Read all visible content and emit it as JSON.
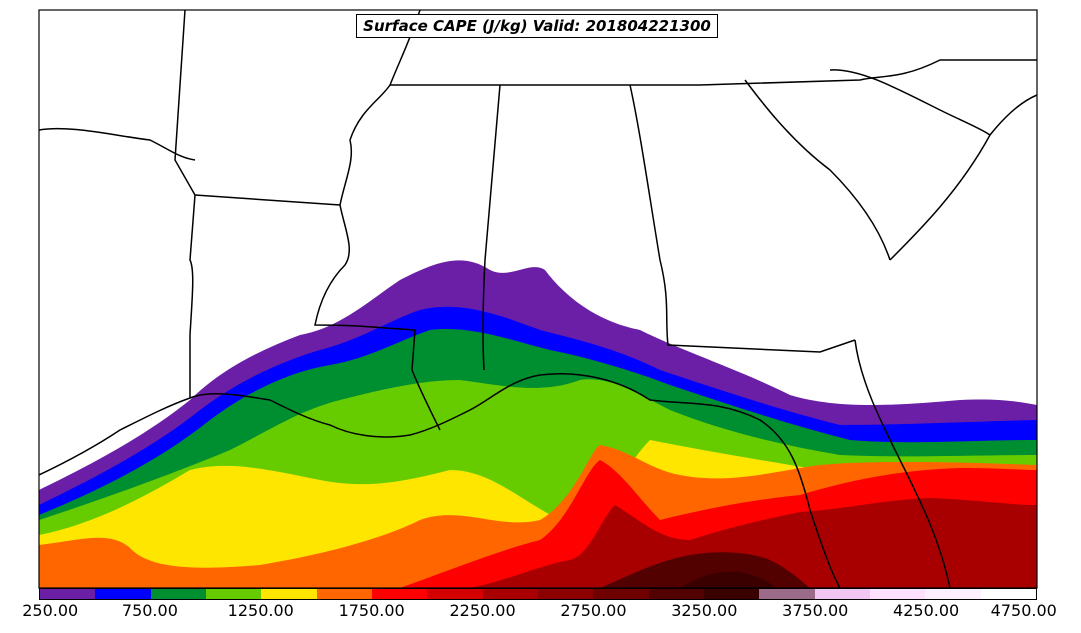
{
  "title": "Surface CAPE (J/kg) Valid: 201804221300",
  "colorbar": {
    "ticks": [
      "250.00",
      "750.00",
      "1250.00",
      "1750.00",
      "2250.00",
      "2750.00",
      "3250.00",
      "3750.00",
      "4250.00",
      "4750.00"
    ],
    "colors": [
      "#6a1fa6",
      "#0000ff",
      "#008f30",
      "#66cc00",
      "#ffe600",
      "#ff6600",
      "#ff0000",
      "#d40000",
      "#a80000",
      "#8c0000",
      "#6e0000",
      "#520000",
      "#3a0000",
      "#9c6b8a",
      "#f2c6f2",
      "#ffe0ff",
      "#fff0ff",
      "#ffffff"
    ]
  },
  "map": {
    "land_color": "#ffffff",
    "boundary_color": "#000000"
  }
}
